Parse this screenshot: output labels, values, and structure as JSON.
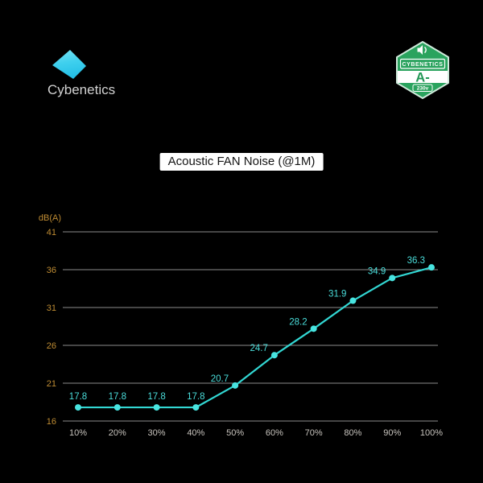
{
  "brand": {
    "name": "Cybenetics"
  },
  "badge": {
    "brand": "CYBENETICS",
    "rating": "A-",
    "voltage": "230v",
    "green": "#2aa35e",
    "icon": "speaker-icon"
  },
  "title": "Acoustic FAN Noise (@1M)",
  "chart_data": {
    "type": "line",
    "title": "Acoustic FAN Noise (@1M)",
    "x": [
      "10%",
      "20%",
      "30%",
      "40%",
      "50%",
      "60%",
      "70%",
      "80%",
      "90%",
      "100%"
    ],
    "values": [
      17.8,
      17.8,
      17.8,
      17.8,
      20.7,
      24.7,
      28.2,
      31.9,
      34.9,
      36.3
    ],
    "ylabel": "dB(A)",
    "xlabel": "",
    "yticks": [
      41,
      36,
      31,
      26,
      21,
      16
    ],
    "ylim": [
      16,
      41
    ],
    "grid": true,
    "legend": "none",
    "label_placement": [
      "above",
      "above",
      "above",
      "above",
      "left",
      "left",
      "left",
      "left",
      "left",
      "left"
    ],
    "colors": {
      "line": "#32d7d3",
      "point": "#48e4e0",
      "label": "#4adedb",
      "ytick": "#bf8c33",
      "xtick": "#c7c3bd",
      "grid": "#8c8c8c",
      "background": "#000000"
    }
  }
}
